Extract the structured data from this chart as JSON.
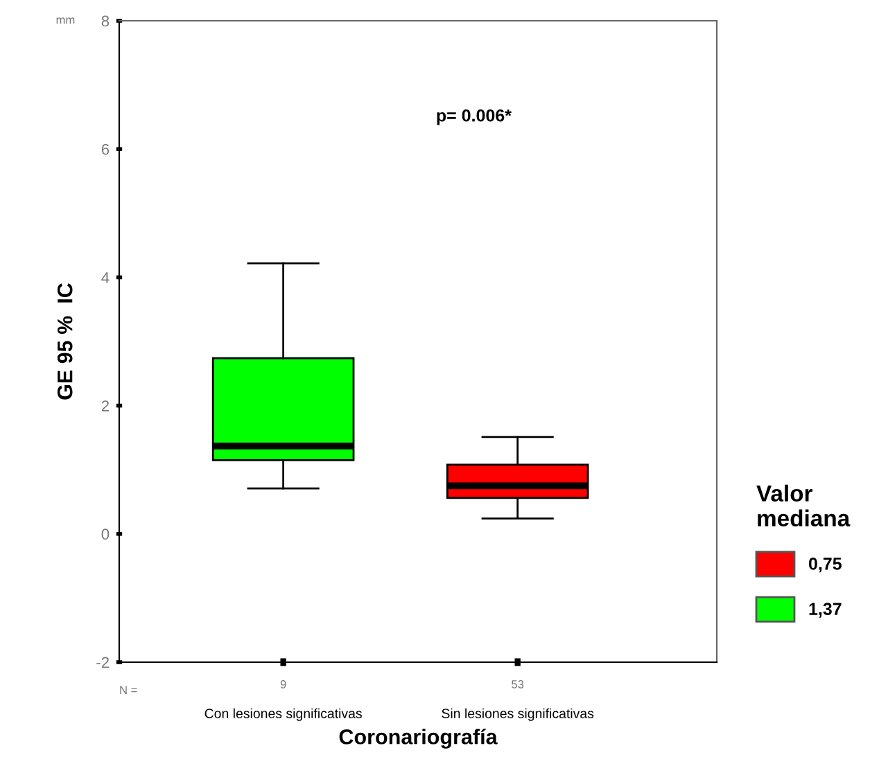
{
  "chart_data": {
    "type": "box",
    "xlabel": "Coronariografía",
    "ylabel": "GE 95 %  IC",
    "legend_title": "Valor\nmediana",
    "legend": "right",
    "grid": false,
    "categories": [
      "Con lesiones significativas",
      "Sin lesiones significativas"
    ],
    "ylim": [
      -2,
      8
    ],
    "yticks": [
      -2,
      0,
      2,
      4,
      6,
      8
    ],
    "series": [
      {
        "name": "0,75",
        "color": "#ff0000",
        "boxes": [
          null,
          {
            "low": 0.24,
            "q1": 0.56,
            "median": 0.75,
            "q3": 1.08,
            "high": 1.51
          }
        ]
      },
      {
        "name": "1,37",
        "color": "#00ff00",
        "boxes": [
          {
            "low": 0.71,
            "q1": 1.15,
            "median": 1.37,
            "q3": 2.74,
            "high": 4.22
          },
          null
        ]
      }
    ],
    "annotations": [
      {
        "text": "p= 0.006*"
      },
      {
        "text": "mm"
      },
      {
        "text": "N ="
      },
      "9",
      "53"
    ]
  }
}
